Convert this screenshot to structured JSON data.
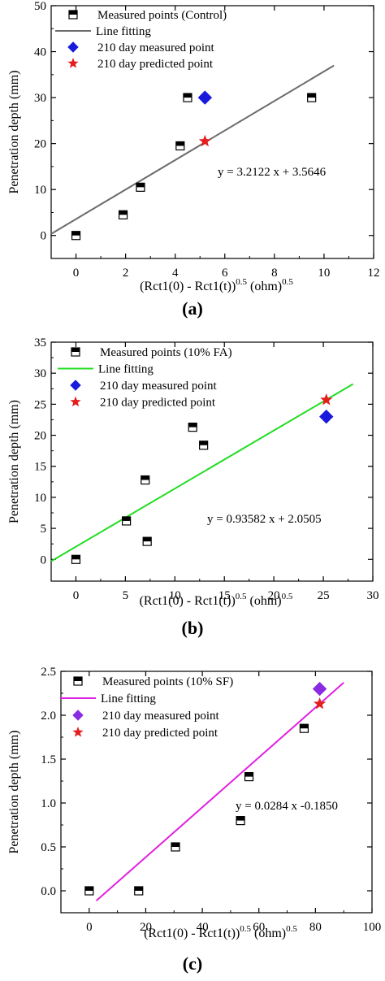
{
  "chart_data": [
    {
      "type": "scatter",
      "panel_label": "(a)",
      "ylabel": "Penetration depth (mm)",
      "xlabel_main": "(Rct1(0) - Rct1(t))",
      "xlabel_sup1": "0.5",
      "xlabel_unit": " (ohm)",
      "xlabel_sup2": "0.5",
      "xlim": [
        -1,
        12
      ],
      "ylim": [
        -5,
        50
      ],
      "xticks": [
        "0",
        "2",
        "4",
        "6",
        "8",
        "10",
        "12"
      ],
      "yticks": [
        "0",
        "10",
        "20",
        "30",
        "40",
        "50"
      ],
      "grid": false,
      "legend_position": "top-left",
      "measured": {
        "name": "Measured points (Control)",
        "x": [
          0,
          1.9,
          2.6,
          4.2,
          4.5,
          9.5
        ],
        "y": [
          0,
          4.5,
          10.5,
          19.5,
          30,
          30
        ]
      },
      "fit": {
        "name": "Line fitting",
        "slope": 3.2122,
        "intercept": 3.5646,
        "x_range": [
          -1,
          10.4
        ],
        "color": "#6b6b6b",
        "equation": "y = 3.2122 x + 3.5646"
      },
      "day210_measured": {
        "name": "210 day measured point",
        "x": 5.2,
        "y": 30,
        "color": "#1a1adc"
      },
      "day210_predicted": {
        "name": "210 day predicted point",
        "x": 5.2,
        "y": 20.5,
        "color": "#e41e1e"
      }
    },
    {
      "type": "scatter",
      "panel_label": "(b)",
      "ylabel": "Penetration depth (mm)",
      "xlabel_main": "(Rct1(0) - Rct1(t))",
      "xlabel_sup1": "0.5",
      "xlabel_unit": " (ohm)",
      "xlabel_sup2": "0.5",
      "xlim": [
        -2.5,
        30
      ],
      "ylim": [
        -3.5,
        35
      ],
      "xticks": [
        "0",
        "5",
        "10",
        "15",
        "20",
        "25",
        "30"
      ],
      "yticks": [
        "0",
        "5",
        "10",
        "15",
        "20",
        "25",
        "30",
        "35"
      ],
      "grid": false,
      "legend_position": "top-left",
      "measured": {
        "name": "Measured points (10% FA)",
        "x": [
          0,
          5.1,
          7.0,
          7.2,
          11.8,
          12.9
        ],
        "y": [
          0,
          6.2,
          12.8,
          2.9,
          21.3,
          18.4
        ]
      },
      "fit": {
        "name": "Line fitting",
        "slope": 0.93582,
        "intercept": 2.0505,
        "x_range": [
          -2.5,
          28
        ],
        "color": "#22dd22",
        "equation": "y = 0.93582 x + 2.0505"
      },
      "day210_measured": {
        "name": "210 day measured point",
        "x": 25.3,
        "y": 23,
        "color": "#1a1adc"
      },
      "day210_predicted": {
        "name": "210 day predicted point",
        "x": 25.3,
        "y": 25.7,
        "color": "#e41e1e"
      }
    },
    {
      "type": "scatter",
      "panel_label": "(c)",
      "ylabel": "Penetration depth (mm)",
      "xlabel_main": "(Rct1(0) - Rct1(t))",
      "xlabel_sup1": "0.5",
      "xlabel_unit": " (ohm)",
      "xlabel_sup2": "0.5",
      "xlim": [
        -10,
        100
      ],
      "ylim": [
        -0.25,
        2.5
      ],
      "xticks": [
        "0",
        "20",
        "40",
        "60",
        "80",
        "100"
      ],
      "yticks": [
        "0.0",
        "0.5",
        "1.0",
        "1.5",
        "2.0",
        "2.5"
      ],
      "grid": false,
      "legend_position": "top-left",
      "measured": {
        "name": "Measured points (10% SF)",
        "x": [
          0,
          17.5,
          30.5,
          53.5,
          56.5,
          76
        ],
        "y": [
          0,
          0,
          0.5,
          0.8,
          1.3,
          1.85
        ]
      },
      "fit": {
        "name": "Line fitting",
        "slope": 0.0284,
        "intercept": -0.185,
        "x_range": [
          2.5,
          90
        ],
        "color": "#e020e0",
        "equation": "y = 0.0284 x -0.1850"
      },
      "day210_measured": {
        "name": "210 day measured point",
        "x": 81.5,
        "y": 2.3,
        "color": "#8a2be2"
      },
      "day210_predicted": {
        "name": "210 day predicted point",
        "x": 81.5,
        "y": 2.13,
        "color": "#e41e1e"
      }
    }
  ]
}
